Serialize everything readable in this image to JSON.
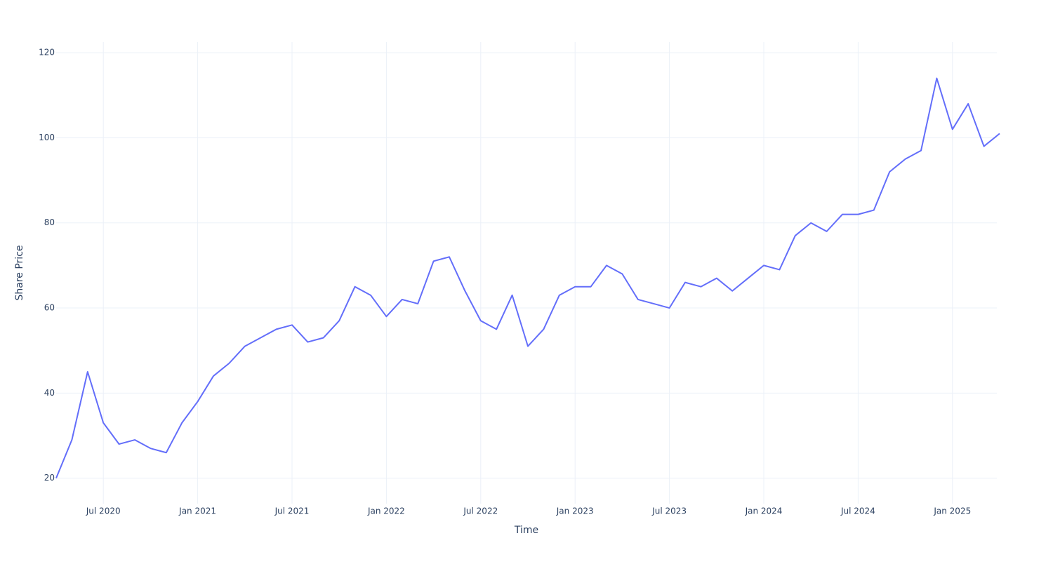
{
  "chart_data": {
    "type": "line",
    "x_label": "Time",
    "y_label": "Share Price",
    "x": [
      "2020-04",
      "2020-05",
      "2020-06",
      "2020-07",
      "2020-08",
      "2020-09",
      "2020-10",
      "2020-11",
      "2020-12",
      "2021-01",
      "2021-02",
      "2021-03",
      "2021-04",
      "2021-05",
      "2021-06",
      "2021-07",
      "2021-08",
      "2021-09",
      "2021-10",
      "2021-11",
      "2021-12",
      "2022-01",
      "2022-02",
      "2022-03",
      "2022-04",
      "2022-05",
      "2022-06",
      "2022-07",
      "2022-08",
      "2022-09",
      "2022-10",
      "2022-11",
      "2022-12",
      "2023-01",
      "2023-02",
      "2023-03",
      "2023-04",
      "2023-05",
      "2023-06",
      "2023-07",
      "2023-08",
      "2023-09",
      "2023-10",
      "2023-11",
      "2023-12",
      "2024-01",
      "2024-02",
      "2024-03",
      "2024-04",
      "2024-05",
      "2024-06",
      "2024-07",
      "2024-08",
      "2024-09",
      "2024-10",
      "2024-11",
      "2024-12",
      "2025-01",
      "2025-02",
      "2025-03",
      "2025-04"
    ],
    "series": [
      {
        "name": "Share Price",
        "color": "#636efa",
        "values": [
          20,
          29,
          45,
          33,
          28,
          29,
          27,
          26,
          33,
          38,
          44,
          47,
          51,
          53,
          55,
          56,
          52,
          53,
          57,
          65,
          63,
          58,
          62,
          61,
          71,
          72,
          64,
          57,
          55,
          63,
          51,
          55,
          63,
          65,
          65,
          70,
          68,
          62,
          61,
          60,
          66,
          65,
          67,
          64,
          67,
          70,
          69,
          77,
          80,
          78,
          82,
          82,
          83,
          92,
          95,
          97,
          114,
          102,
          108,
          98,
          101
        ]
      }
    ],
    "xlim": [
      "2020-04",
      "2025-04"
    ],
    "xticks": [
      {
        "value": "2020-07",
        "label": "Jul 2020"
      },
      {
        "value": "2021-01",
        "label": "Jan 2021"
      },
      {
        "value": "2021-07",
        "label": "Jul 2021"
      },
      {
        "value": "2022-01",
        "label": "Jan 2022"
      },
      {
        "value": "2022-07",
        "label": "Jul 2022"
      },
      {
        "value": "2023-01",
        "label": "Jan 2023"
      },
      {
        "value": "2023-07",
        "label": "Jul 2023"
      },
      {
        "value": "2024-01",
        "label": "Jan 2024"
      },
      {
        "value": "2024-07",
        "label": "Jul 2024"
      },
      {
        "value": "2025-01",
        "label": "Jan 2025"
      }
    ],
    "ylim": [
      14,
      122.5
    ],
    "yticks": [
      20,
      40,
      60,
      80,
      100,
      120
    ],
    "grid": true
  }
}
